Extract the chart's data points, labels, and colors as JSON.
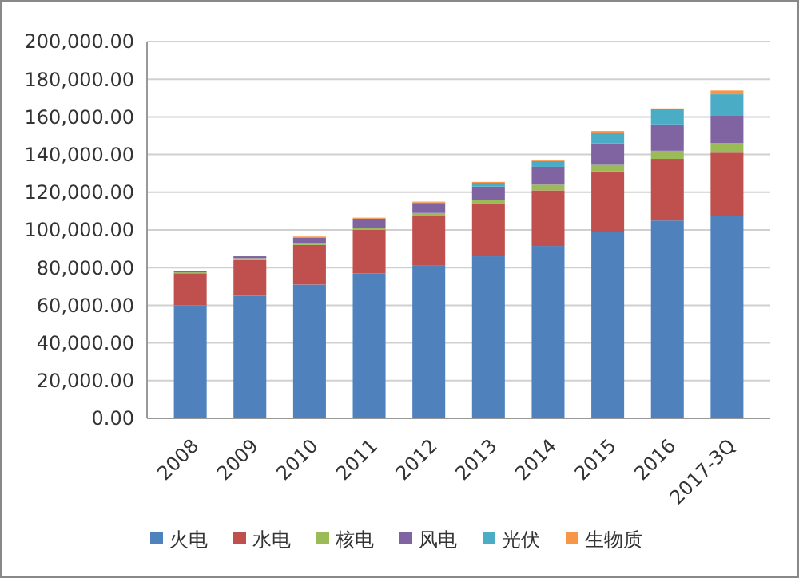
{
  "chart_data": {
    "type": "bar",
    "stacked": true,
    "categories": [
      "2008",
      "2009",
      "2010",
      "2011",
      "2012",
      "2013",
      "2014",
      "2015",
      "2016",
      "2017-3Q"
    ],
    "series": [
      {
        "name": "火电",
        "color": "#4f81bd",
        "values": [
          60000,
          65000,
          71000,
          77000,
          81000,
          86000,
          91500,
          99000,
          105000,
          107500
        ]
      },
      {
        "name": "水电",
        "color": "#c0504d",
        "values": [
          17000,
          19000,
          21000,
          23000,
          26500,
          28000,
          29500,
          32000,
          32700,
          33500
        ]
      },
      {
        "name": "核电",
        "color": "#9bbb59",
        "values": [
          500,
          1000,
          1000,
          1000,
          1500,
          2000,
          3000,
          3500,
          4300,
          5000
        ]
      },
      {
        "name": "风电",
        "color": "#8064a2",
        "values": [
          500,
          1000,
          3000,
          5000,
          4700,
          7000,
          9500,
          11500,
          14000,
          14600
        ]
      },
      {
        "name": "光伏",
        "color": "#4bacc6",
        "values": [
          0,
          0,
          0,
          0,
          800,
          2000,
          3000,
          5500,
          8000,
          11400
        ]
      },
      {
        "name": "生物质",
        "color": "#f79646",
        "values": [
          0,
          0,
          500,
          500,
          500,
          500,
          500,
          1000,
          500,
          2000
        ]
      }
    ],
    "ylim": [
      0,
      200000
    ],
    "yticks": [
      {
        "value": 0,
        "label": "0.00"
      },
      {
        "value": 20000,
        "label": "20,000.00"
      },
      {
        "value": 40000,
        "label": "40,000.00"
      },
      {
        "value": 60000,
        "label": "60,000.00"
      },
      {
        "value": 80000,
        "label": "80,000.00"
      },
      {
        "value": 100000,
        "label": "100,000.00"
      },
      {
        "value": 120000,
        "label": "120,000.00"
      },
      {
        "value": 140000,
        "label": "140,000.00"
      },
      {
        "value": 160000,
        "label": "160,000.00"
      },
      {
        "value": 180000,
        "label": "180,000.00"
      },
      {
        "value": 200000,
        "label": "200,000.00"
      }
    ],
    "grid": "y",
    "legend": "bottom"
  }
}
